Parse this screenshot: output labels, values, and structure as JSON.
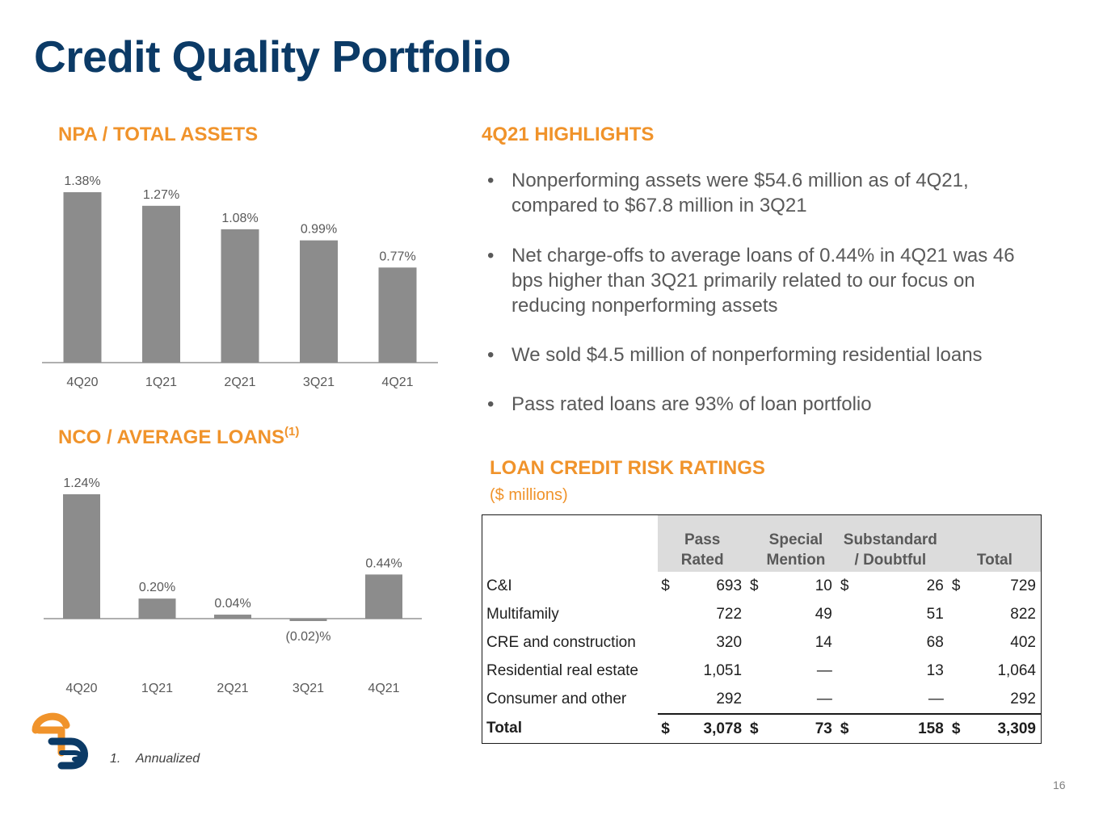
{
  "title": "Credit Quality Portfolio",
  "npa": {
    "heading": "NPA / TOTAL ASSETS",
    "chart_data": {
      "type": "bar",
      "categories": [
        "4Q20",
        "1Q21",
        "2Q21",
        "3Q21",
        "4Q21"
      ],
      "values": [
        1.38,
        1.27,
        1.08,
        0.99,
        0.77
      ],
      "labels": [
        "1.38%",
        "1.27%",
        "1.08%",
        "0.99%",
        "0.77%"
      ],
      "unit": "%",
      "bar_color": "#8c8c8c",
      "ylim": [
        0,
        1.38
      ]
    }
  },
  "nco": {
    "heading": "NCO / AVERAGE LOANS",
    "heading_sup": "(1)",
    "chart_data": {
      "type": "bar",
      "categories": [
        "4Q20",
        "1Q21",
        "2Q21",
        "3Q21",
        "4Q21"
      ],
      "values": [
        1.24,
        0.2,
        0.04,
        -0.02,
        0.44
      ],
      "labels": [
        "1.24%",
        "0.20%",
        "0.04%",
        "(0.02)%",
        "0.44%"
      ],
      "unit": "%",
      "bar_color": "#8c8c8c",
      "ylim": [
        -0.02,
        1.24
      ]
    }
  },
  "highlights": {
    "heading": "4Q21 HIGHLIGHTS",
    "bullet": "•",
    "items": [
      "Nonperforming assets were $54.6 million as of 4Q21, compared to $67.8 million in 3Q21",
      "Net charge-offs to average loans of 0.44% in 4Q21 was 46 bps higher than 3Q21 primarily related to our focus on reducing nonperforming assets",
      "We sold $4.5 million of nonperforming residential loans",
      "Pass rated loans are 93% of loan portfolio"
    ]
  },
  "ratings": {
    "heading": "LOAN CREDIT RISK RATINGS",
    "subheading": "($ millions)",
    "columns": [
      "Pass Rated",
      "Special Mention",
      "Substandard / Doubtful",
      "Total"
    ],
    "rows": [
      {
        "label": "C&I",
        "dollar": "$",
        "pass": "693",
        "special": "10",
        "sub": "26",
        "total": "729"
      },
      {
        "label": "Multifamily",
        "dollar": "",
        "pass": "722",
        "special": "49",
        "sub": "51",
        "total": "822"
      },
      {
        "label": "CRE and construction",
        "dollar": "",
        "pass": "320",
        "special": "14",
        "sub": "68",
        "total": "402"
      },
      {
        "label": "Residential real estate",
        "dollar": "",
        "pass": "1,051",
        "special": "—",
        "sub": "13",
        "total": "1,064"
      },
      {
        "label": "Consumer and other",
        "dollar": "",
        "pass": "292",
        "special": "—",
        "sub": "—",
        "total": "292"
      }
    ],
    "total": {
      "label": "Total",
      "dollar": "$",
      "pass": "3,078",
      "special": "73",
      "sub": "158",
      "total": "3,309"
    }
  },
  "footnote": {
    "num": "1.",
    "text": "Annualized"
  },
  "page_number": "16",
  "colors": {
    "title": "#0b3a66",
    "accent": "#f0932b",
    "bar": "#8c8c8c",
    "logo_navy": "#0b3a66",
    "logo_orange": "#f0932b"
  }
}
